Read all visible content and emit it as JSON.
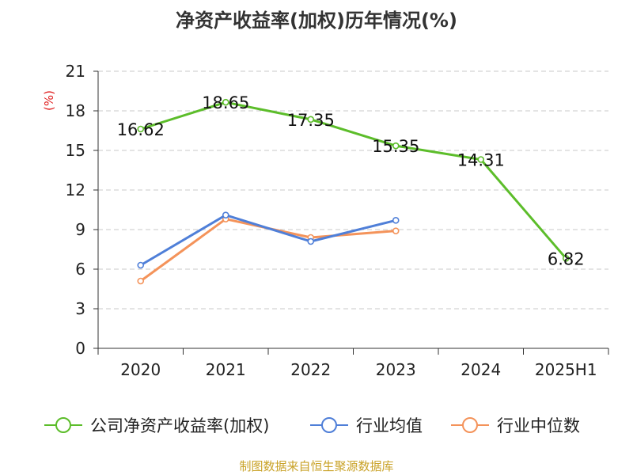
{
  "chart_data": {
    "type": "line",
    "title": "净资产收益率(加权)历年情况(%)",
    "ylabel": "(%)",
    "xlabel": "",
    "categories": [
      "2020",
      "2021",
      "2022",
      "2023",
      "2024",
      "2025H1"
    ],
    "ylim": [
      0,
      21
    ],
    "yticks": [
      0,
      3,
      6,
      9,
      12,
      15,
      18,
      21
    ],
    "grid": true,
    "legend_position": "bottom",
    "series": [
      {
        "name": "公司净资产收益率(加权)",
        "color": "#5cbd2a",
        "values": [
          16.62,
          18.65,
          17.35,
          15.35,
          14.31,
          6.82
        ],
        "labels": [
          "16.62",
          "18.65",
          "17.35",
          "15.35",
          "14.31",
          "6.82"
        ]
      },
      {
        "name": "行业均值",
        "color": "#4f7fd8",
        "values": [
          6.3,
          10.1,
          8.1,
          9.7,
          null,
          null
        ]
      },
      {
        "name": "行业中位数",
        "color": "#f4935a",
        "values": [
          5.1,
          9.8,
          8.4,
          8.9,
          null,
          null
        ]
      }
    ]
  },
  "footer": "制图数据来自恒生聚源数据库"
}
